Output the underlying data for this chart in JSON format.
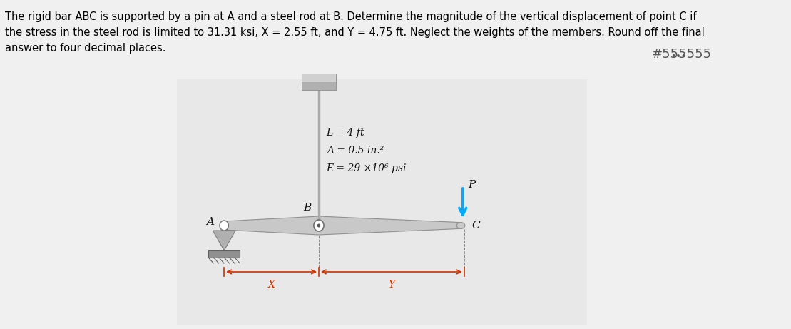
{
  "text_block": "The rigid bar ABC is supported by a pin at A and a steel rod at B. Determine the magnitude of the vertical displacement of point C if\nthe stress in the steel rod is limited to 31.31 ksi, X = 2.55 ft, and Y = 4.75 ft. Neglect the weights of the members. Round off the final\nanswer to four decimal places.",
  "text_fontsize": 10.5,
  "text_color": "#000000",
  "background_color": "#f0f0f0",
  "diagram_bg": "#e8e8e8",
  "ellipsis_color": "#555555",
  "label_L": "L = 4 ft",
  "label_A": "A = 0.5 in.²",
  "label_E": "E = 29 ×10⁶ psi",
  "label_B": "B",
  "label_A_pin": "A",
  "label_C": "C",
  "label_P": "P",
  "label_X": "X",
  "label_Y": "Y",
  "rod_color": "#aaaaaa",
  "bar_color": "#cccccc",
  "support_color": "#aaaaaa",
  "arrow_color": "#00aaff",
  "pin_color": "#888888",
  "dim_color": "#cc3300",
  "wall_color": "#888888"
}
